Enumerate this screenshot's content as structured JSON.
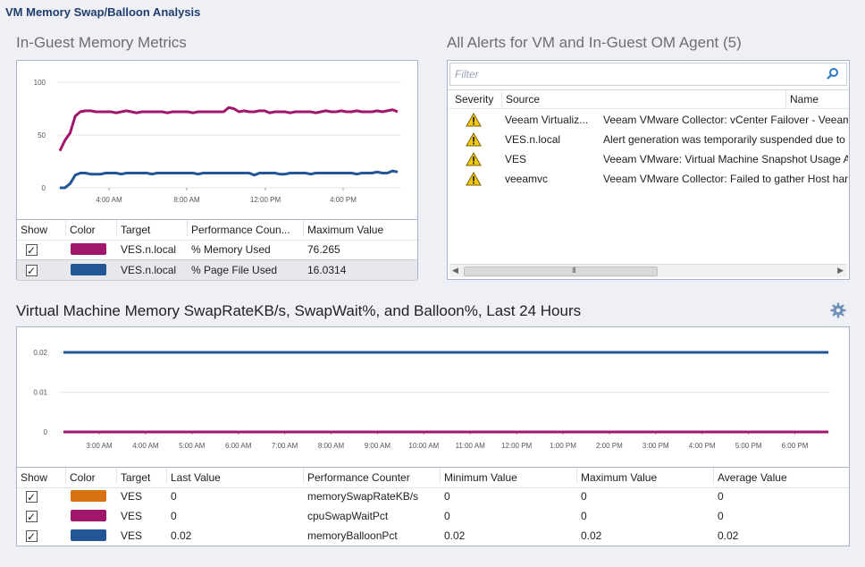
{
  "page_title": "VM Memory Swap/Balloon Analysis",
  "metrics": {
    "title": "In-Guest Memory Metrics",
    "chart_data": {
      "type": "line",
      "y_ticks": [
        "100",
        "50",
        "0"
      ],
      "x_ticks": [
        "4:00 AM",
        "8:00 AM",
        "12:00 PM",
        "4:00 PM"
      ],
      "ylim": [
        0,
        100
      ],
      "series": [
        {
          "color": "#a0166d",
          "values": [
            35,
            45,
            52,
            68,
            72,
            73,
            73,
            72,
            72,
            72,
            72,
            71,
            72,
            73,
            72,
            71,
            72,
            72,
            72,
            72,
            72,
            71,
            72,
            72,
            72,
            72,
            71,
            72,
            72,
            72,
            72,
            72,
            72,
            76,
            75,
            72,
            73,
            72,
            72,
            73,
            73,
            71,
            72,
            72,
            72,
            71,
            72,
            72,
            72,
            72,
            71,
            72,
            73,
            72,
            72,
            73,
            72,
            72,
            73,
            72,
            72,
            72,
            73,
            72,
            73,
            74,
            72
          ]
        },
        {
          "color": "#235696",
          "values": [
            0,
            0,
            4,
            12,
            14,
            14,
            13,
            13,
            13,
            14,
            14,
            14,
            13,
            14,
            14,
            14,
            14,
            14,
            13,
            14,
            14,
            14,
            14,
            14,
            14,
            14,
            14,
            13,
            14,
            14,
            14,
            14,
            14,
            14,
            14,
            14,
            14,
            14,
            12,
            14,
            14,
            14,
            14,
            13,
            13,
            14,
            14,
            14,
            14,
            13,
            14,
            14,
            14,
            14,
            14,
            14,
            14,
            14,
            13,
            14,
            14,
            14,
            15,
            14,
            14,
            16,
            15
          ]
        }
      ]
    },
    "columns": [
      "Show",
      "Color",
      "Target",
      "Performance Coun...",
      "Maximum Value"
    ],
    "rows": [
      {
        "color": "#a0166d",
        "target": "VES.n.local",
        "counter": "% Memory Used",
        "max": "76.265"
      },
      {
        "color": "#235696",
        "target": "VES.n.local",
        "counter": "% Page File Used",
        "max": "16.0314"
      }
    ]
  },
  "alerts": {
    "title": "All Alerts for VM and In-Guest OM Agent (5)",
    "filter_placeholder": "Filter",
    "columns": [
      "Severity",
      "Source",
      "Name"
    ],
    "rows": [
      {
        "severity": "warning-icon",
        "source": "Veeam Virtualiz...",
        "name": "Veeam VMware Collector: vCenter Failover - Veeam"
      },
      {
        "severity": "warning-icon",
        "source": "VES.n.local",
        "name": "Alert generation was temporarily suspended due to"
      },
      {
        "severity": "warning-icon",
        "source": "VES",
        "name": "Veeam VMware: Virtual Machine Snapshot Usage Ar"
      },
      {
        "severity": "warning-icon",
        "source": "veeamvc",
        "name": "Veeam VMware Collector: Failed to gather Host hard"
      }
    ],
    "scroll_grip": "III"
  },
  "vm": {
    "title": "Virtual Machine Memory SwapRateKB/s, SwapWait%, and Balloon%, Last 24 Hours",
    "chart_data": {
      "type": "line",
      "y_ticks": [
        "0.02",
        "0.01",
        "0"
      ],
      "x_ticks": [
        "3:00 AM",
        "4:00 AM",
        "5:00 AM",
        "6:00 AM",
        "7:00 AM",
        "8:00 AM",
        "9:00 AM",
        "10:00 AM",
        "11:00 AM",
        "12:00 PM",
        "1:00 PM",
        "2:00 PM",
        "3:00 PM",
        "4:00 PM",
        "5:00 PM",
        "6:00 PM"
      ],
      "ylim": [
        0,
        0.02
      ],
      "series": [
        {
          "color": "#d9700f",
          "values": [
            0,
            0
          ]
        },
        {
          "color": "#a0166d",
          "values": [
            0,
            0
          ]
        },
        {
          "color": "#235696",
          "values": [
            0.02,
            0.02
          ]
        }
      ]
    },
    "columns": [
      "Show",
      "Color",
      "Target",
      "Last Value",
      "Performance Counter",
      "Minimum Value",
      "Maximum Value",
      "Average Value"
    ],
    "rows": [
      {
        "color": "#d9700f",
        "target": "VES",
        "last": "0",
        "counter": "memorySwapRateKB/s",
        "min": "0",
        "max": "0",
        "avg": "0"
      },
      {
        "color": "#a0166d",
        "target": "VES",
        "last": "0",
        "counter": "cpuSwapWaitPct",
        "min": "0",
        "max": "0",
        "avg": "0"
      },
      {
        "color": "#235696",
        "target": "VES",
        "last": "0.02",
        "counter": "memoryBalloonPct",
        "min": "0.02",
        "max": "0.02",
        "avg": "0.02"
      }
    ]
  }
}
